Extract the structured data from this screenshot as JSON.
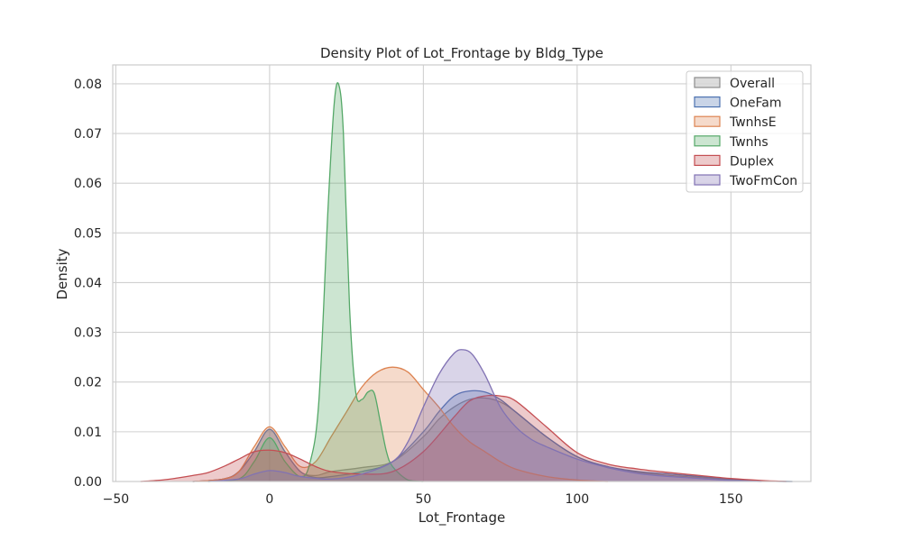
{
  "chart_data": {
    "type": "area",
    "title": "Density Plot of Lot_Frontage by Bldg_Type",
    "xlabel": "Lot_Frontage",
    "ylabel": "Density",
    "xlim": [
      -51,
      176
    ],
    "ylim": [
      0,
      0.0838
    ],
    "xticks": [
      -50,
      0,
      50,
      100,
      150
    ],
    "xtick_labels": [
      "−50",
      "0",
      "50",
      "100",
      "150"
    ],
    "yticks": [
      0,
      0.01,
      0.02,
      0.03,
      0.04,
      0.05,
      0.06,
      0.07,
      0.08
    ],
    "ytick_labels": [
      "0.00",
      "0.01",
      "0.02",
      "0.03",
      "0.04",
      "0.05",
      "0.06",
      "0.07",
      "0.08"
    ],
    "grid": true,
    "legend_position": "top-right",
    "series": [
      {
        "name": "Overall",
        "color": "#8c8c8c",
        "x": [
          -25,
          -15,
          -10,
          -5,
          0,
          5,
          10,
          15,
          20,
          30,
          40,
          50,
          55,
          60,
          65,
          70,
          75,
          80,
          90,
          100,
          110,
          120,
          130,
          140,
          150,
          160,
          170
        ],
        "y": [
          0,
          0.0005,
          0.002,
          0.006,
          0.0105,
          0.006,
          0.002,
          0.0012,
          0.002,
          0.0028,
          0.004,
          0.009,
          0.0125,
          0.015,
          0.0165,
          0.0168,
          0.016,
          0.014,
          0.009,
          0.005,
          0.0028,
          0.0018,
          0.0012,
          0.0008,
          0.0004,
          0.0001,
          0
        ]
      },
      {
        "name": "OneFam",
        "color": "#4c72b0",
        "x": [
          -25,
          -15,
          -10,
          -5,
          0,
          5,
          10,
          15,
          20,
          30,
          40,
          50,
          55,
          60,
          65,
          70,
          75,
          80,
          90,
          100,
          110,
          120,
          130,
          140,
          150,
          160,
          170
        ],
        "y": [
          0,
          0.0005,
          0.002,
          0.006,
          0.0105,
          0.006,
          0.002,
          0.0008,
          0.001,
          0.002,
          0.004,
          0.01,
          0.014,
          0.0172,
          0.0182,
          0.018,
          0.0165,
          0.014,
          0.009,
          0.005,
          0.003,
          0.002,
          0.0015,
          0.001,
          0.0005,
          0.0001,
          0
        ]
      },
      {
        "name": "TwnhsE",
        "color": "#dd8452",
        "x": [
          -25,
          -15,
          -10,
          -5,
          0,
          5,
          10,
          15,
          20,
          25,
          30,
          35,
          40,
          45,
          50,
          55,
          60,
          65,
          70,
          75,
          80,
          90,
          100,
          110
        ],
        "y": [
          0,
          0.0005,
          0.002,
          0.007,
          0.011,
          0.007,
          0.003,
          0.004,
          0.009,
          0.014,
          0.019,
          0.022,
          0.023,
          0.022,
          0.0185,
          0.015,
          0.011,
          0.008,
          0.006,
          0.004,
          0.0025,
          0.001,
          0.0003,
          0
        ]
      },
      {
        "name": "Twnhs",
        "color": "#55a868",
        "x": [
          -20,
          -10,
          -5,
          0,
          5,
          10,
          13,
          16,
          19,
          21,
          22.5,
          24,
          26,
          28,
          30,
          32,
          34,
          36,
          38,
          40,
          45,
          50
        ],
        "y": [
          0,
          0.0005,
          0.004,
          0.0088,
          0.004,
          0.001,
          0.0035,
          0.016,
          0.055,
          0.076,
          0.0798,
          0.07,
          0.035,
          0.018,
          0.0165,
          0.018,
          0.0178,
          0.012,
          0.006,
          0.003,
          0.0003,
          0
        ]
      },
      {
        "name": "Duplex",
        "color": "#c44e52",
        "x": [
          -42,
          -35,
          -30,
          -25,
          -20,
          -15,
          -10,
          -5,
          0,
          5,
          10,
          15,
          20,
          30,
          40,
          50,
          60,
          65,
          70,
          75,
          80,
          90,
          100,
          110,
          120,
          130,
          140,
          150,
          160,
          168
        ],
        "y": [
          0,
          0.0003,
          0.0007,
          0.0012,
          0.0018,
          0.003,
          0.0045,
          0.006,
          0.0063,
          0.0058,
          0.0045,
          0.003,
          0.002,
          0.0015,
          0.002,
          0.006,
          0.013,
          0.0162,
          0.0172,
          0.0172,
          0.0162,
          0.011,
          0.0058,
          0.0035,
          0.0025,
          0.0018,
          0.0012,
          0.0006,
          0.0002,
          0
        ]
      },
      {
        "name": "TwoFmCon",
        "color": "#8172b3",
        "x": [
          -20,
          -10,
          -5,
          0,
          5,
          10,
          20,
          30,
          40,
          45,
          50,
          55,
          60,
          63,
          66,
          70,
          75,
          80,
          85,
          90,
          100,
          110,
          120,
          130,
          140,
          150,
          160
        ],
        "y": [
          0,
          0.0005,
          0.0015,
          0.0022,
          0.0018,
          0.001,
          0.0005,
          0.0015,
          0.004,
          0.008,
          0.015,
          0.0215,
          0.0258,
          0.0265,
          0.0255,
          0.0215,
          0.015,
          0.011,
          0.0085,
          0.007,
          0.0045,
          0.0028,
          0.0016,
          0.001,
          0.0006,
          0.0002,
          0
        ]
      }
    ]
  }
}
